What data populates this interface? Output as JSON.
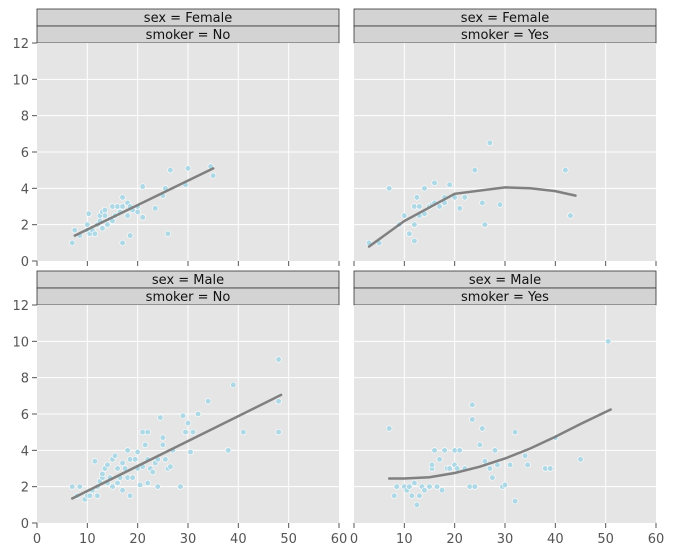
{
  "style": {
    "panel_bg": "#e5e5e5",
    "strip_bg": "#d3d3d3",
    "grid": "#ffffff",
    "point": "#add8e6",
    "fit_line": "#808080",
    "tick_text": "#555555"
  },
  "chart_data": [
    {
      "type": "scatter",
      "strips": [
        "sex = Female",
        "smoker = No"
      ],
      "xlim": [
        0,
        60
      ],
      "ylim": [
        0,
        12
      ],
      "xticks": [
        "0",
        "10",
        "20",
        "30",
        "40",
        "50",
        "60"
      ],
      "yticks": [
        "0",
        "2",
        "4",
        "6",
        "8",
        "10",
        "12"
      ],
      "points": [
        [
          7,
          1
        ],
        [
          7.5,
          1.7
        ],
        [
          8.5,
          1.4
        ],
        [
          10,
          1.7
        ],
        [
          10,
          2
        ],
        [
          10.3,
          2.6
        ],
        [
          10.5,
          1.5
        ],
        [
          11,
          1.7
        ],
        [
          11.5,
          1.5
        ],
        [
          12,
          2
        ],
        [
          12.5,
          2.2
        ],
        [
          12.5,
          2.5
        ],
        [
          13,
          1.8
        ],
        [
          13,
          2.7
        ],
        [
          13.5,
          2.5
        ],
        [
          13.5,
          2.8
        ],
        [
          14,
          2
        ],
        [
          14.5,
          2.3
        ],
        [
          15,
          2.2
        ],
        [
          15,
          3
        ],
        [
          15.5,
          2.5
        ],
        [
          16,
          3
        ],
        [
          16.5,
          2.7
        ],
        [
          17,
          1
        ],
        [
          17,
          3
        ],
        [
          17,
          3.5
        ],
        [
          18,
          2.5
        ],
        [
          18,
          3.2
        ],
        [
          18.5,
          1.4
        ],
        [
          18.5,
          3
        ],
        [
          19,
          2.8
        ],
        [
          20,
          3
        ],
        [
          20,
          2.7
        ],
        [
          21,
          2.4
        ],
        [
          21,
          4.1
        ],
        [
          23.5,
          2.9
        ],
        [
          25,
          3.6
        ],
        [
          25.5,
          4
        ],
        [
          26,
          1.5
        ],
        [
          26.5,
          5
        ],
        [
          29.5,
          4.2
        ],
        [
          30,
          5.1
        ],
        [
          34.5,
          5.2
        ],
        [
          35,
          4.7
        ]
      ],
      "fit": [
        [
          7.5,
          1.4
        ],
        [
          35,
          5.1
        ]
      ]
    },
    {
      "type": "scatter",
      "strips": [
        "sex = Female",
        "smoker = Yes"
      ],
      "xlim": [
        0,
        60
      ],
      "ylim": [
        0,
        12
      ],
      "xticks": [
        "0",
        "10",
        "20",
        "30",
        "40",
        "50",
        "60"
      ],
      "yticks": [
        "0",
        "2",
        "4",
        "6",
        "8",
        "10",
        "12"
      ],
      "points": [
        [
          3,
          1
        ],
        [
          5,
          1
        ],
        [
          7,
          4
        ],
        [
          9,
          2
        ],
        [
          10,
          2.5
        ],
        [
          11,
          1.5
        ],
        [
          12,
          2
        ],
        [
          12,
          3
        ],
        [
          12,
          1.1
        ],
        [
          12.5,
          3.5
        ],
        [
          13,
          2.5
        ],
        [
          13,
          3
        ],
        [
          14,
          4
        ],
        [
          14,
          2.6
        ],
        [
          15,
          3
        ],
        [
          15.5,
          3.1
        ],
        [
          16,
          4.3
        ],
        [
          16,
          3.2
        ],
        [
          17,
          3
        ],
        [
          18,
          3.5
        ],
        [
          18,
          3.2
        ],
        [
          19,
          4.2
        ],
        [
          20,
          3.5
        ],
        [
          21,
          2.9
        ],
        [
          22,
          3.5
        ],
        [
          24,
          5
        ],
        [
          25.5,
          3.2
        ],
        [
          26,
          2
        ],
        [
          27,
          6.5
        ],
        [
          29,
          3.1
        ],
        [
          42,
          5
        ],
        [
          43,
          2.5
        ]
      ],
      "fit": [
        [
          3,
          0.8
        ],
        [
          10,
          2.2
        ],
        [
          20,
          3.7
        ],
        [
          30,
          4.05
        ],
        [
          35,
          4
        ],
        [
          40,
          3.85
        ],
        [
          44,
          3.6
        ]
      ]
    },
    {
      "type": "scatter",
      "strips": [
        "sex = Male",
        "smoker = No"
      ],
      "xlim": [
        0,
        60
      ],
      "ylim": [
        0,
        12
      ],
      "xticks": [
        "0",
        "10",
        "20",
        "30",
        "40",
        "50",
        "60"
      ],
      "yticks": [
        "0",
        "2",
        "4",
        "6",
        "8",
        "10",
        "12"
      ],
      "points": [
        [
          7,
          2
        ],
        [
          8,
          1.5
        ],
        [
          8.5,
          2
        ],
        [
          9.5,
          1.3
        ],
        [
          10,
          1.5
        ],
        [
          10.5,
          1.5
        ],
        [
          11,
          1.8
        ],
        [
          11.5,
          3.4
        ],
        [
          12,
          2
        ],
        [
          12,
          1.5
        ],
        [
          12.5,
          2.3
        ],
        [
          13,
          2.5
        ],
        [
          13,
          2.7
        ],
        [
          13.5,
          3
        ],
        [
          14,
          2.2
        ],
        [
          14,
          3.2
        ],
        [
          14.5,
          2.5
        ],
        [
          15,
          2
        ],
        [
          15,
          3.5
        ],
        [
          15.5,
          3.7
        ],
        [
          16,
          2.2
        ],
        [
          16,
          3
        ],
        [
          16.5,
          2.5
        ],
        [
          17,
          3.3
        ],
        [
          17,
          1.8
        ],
        [
          17.5,
          3
        ],
        [
          18,
          4
        ],
        [
          18,
          2.5
        ],
        [
          18.5,
          3.5
        ],
        [
          18.5,
          1.5
        ],
        [
          19,
          2.5
        ],
        [
          19.5,
          3.5
        ],
        [
          20,
          3
        ],
        [
          20,
          3.9
        ],
        [
          20.5,
          2.1
        ],
        [
          21,
          5
        ],
        [
          21,
          3.1
        ],
        [
          21.5,
          4.3
        ],
        [
          22,
          5
        ],
        [
          22,
          3.5
        ],
        [
          22,
          2.2
        ],
        [
          22.5,
          3
        ],
        [
          23,
          2.8
        ],
        [
          23.5,
          3.3
        ],
        [
          24,
          3.5
        ],
        [
          24,
          2
        ],
        [
          24.5,
          5.8
        ],
        [
          25,
          4.7
        ],
        [
          25,
          4.3
        ],
        [
          25.5,
          3.5
        ],
        [
          26,
          3
        ],
        [
          26.5,
          3.1
        ],
        [
          27,
          4
        ],
        [
          28.5,
          2
        ],
        [
          29,
          5.9
        ],
        [
          29.5,
          5
        ],
        [
          30,
          5.5
        ],
        [
          30.5,
          3.9
        ],
        [
          31,
          5
        ],
        [
          32,
          6
        ],
        [
          34,
          6.7
        ],
        [
          38,
          4
        ],
        [
          39,
          7.6
        ],
        [
          41,
          5
        ],
        [
          48,
          9
        ],
        [
          48,
          6.7
        ],
        [
          48,
          5
        ]
      ],
      "fit": [
        [
          7,
          1.35
        ],
        [
          48.5,
          7.05
        ]
      ]
    },
    {
      "type": "scatter",
      "strips": [
        "sex = Male",
        "smoker = Yes"
      ],
      "xlim": [
        0,
        60
      ],
      "ylim": [
        0,
        12
      ],
      "xticks": [
        "0",
        "10",
        "20",
        "30",
        "40",
        "50",
        "60"
      ],
      "yticks": [
        "0",
        "2",
        "4",
        "6",
        "8",
        "10",
        "12"
      ],
      "points": [
        [
          7,
          5.2
        ],
        [
          8,
          1.5
        ],
        [
          8.5,
          2
        ],
        [
          10,
          2
        ],
        [
          10.5,
          1.8
        ],
        [
          11,
          2
        ],
        [
          11.5,
          1.5
        ],
        [
          12,
          2.2
        ],
        [
          12.5,
          1
        ],
        [
          13,
          1.5
        ],
        [
          13.5,
          2
        ],
        [
          14,
          1.8
        ],
        [
          15,
          2
        ],
        [
          15.5,
          3
        ],
        [
          15.5,
          3.2
        ],
        [
          16,
          4
        ],
        [
          16.5,
          2
        ],
        [
          17,
          3.5
        ],
        [
          17.5,
          1.8
        ],
        [
          18,
          4
        ],
        [
          18.5,
          3
        ],
        [
          19,
          3
        ],
        [
          20,
          3.2
        ],
        [
          20,
          4
        ],
        [
          20.5,
          3
        ],
        [
          21,
          4
        ],
        [
          22,
          3
        ],
        [
          23,
          2
        ],
        [
          23.5,
          6.5
        ],
        [
          23.5,
          5.7
        ],
        [
          24,
          2
        ],
        [
          25,
          4.3
        ],
        [
          25.5,
          5.2
        ],
        [
          26,
          3.4
        ],
        [
          27,
          3
        ],
        [
          27.5,
          2.5
        ],
        [
          28,
          4
        ],
        [
          28.5,
          3.2
        ],
        [
          29.5,
          2
        ],
        [
          30,
          2.1
        ],
        [
          31,
          3.2
        ],
        [
          32,
          5
        ],
        [
          32,
          1.2
        ],
        [
          34,
          3.7
        ],
        [
          34.5,
          3.2
        ],
        [
          38,
          3
        ],
        [
          39,
          3
        ],
        [
          40,
          4.7
        ],
        [
          45,
          3.5
        ],
        [
          50.5,
          10
        ]
      ],
      "fit": [
        [
          7,
          2.45
        ],
        [
          10,
          2.45
        ],
        [
          15,
          2.52
        ],
        [
          20,
          2.75
        ],
        [
          25,
          3.1
        ],
        [
          30,
          3.55
        ],
        [
          35,
          4.1
        ],
        [
          40,
          4.75
        ],
        [
          45,
          5.45
        ],
        [
          51,
          6.25
        ]
      ]
    }
  ]
}
